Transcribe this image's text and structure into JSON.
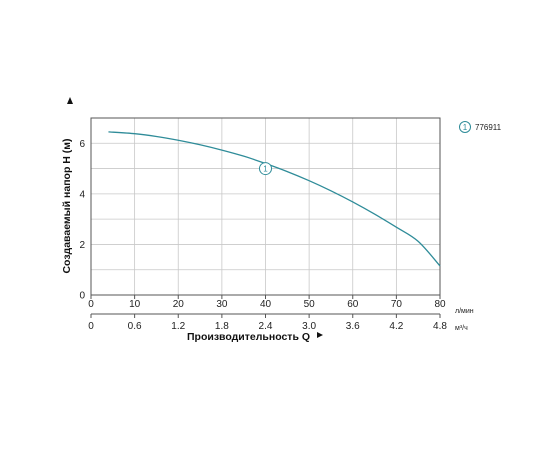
{
  "chart_data": {
    "type": "line",
    "ylabel": "Создаваемый напор H (м)",
    "xlabel": "Производительность Q",
    "x_unit": "л/мин",
    "x2_unit": "м³/ч",
    "xlim": [
      0,
      80
    ],
    "ylim": [
      0,
      7
    ],
    "x_ticks": [
      "0",
      "10",
      "20",
      "30",
      "40",
      "50",
      "60",
      "70",
      "80"
    ],
    "x2_ticks": [
      "0",
      "0.6",
      "1.2",
      "1.8",
      "2.4",
      "3.0",
      "3.6",
      "4.2",
      "4.8"
    ],
    "y_ticks": [
      "0",
      "2",
      "4",
      "6"
    ],
    "grid": true,
    "legend_position": "top-right",
    "series": [
      {
        "name": "776911",
        "marker_label": "1",
        "color": "#2f8c99",
        "x": [
          4,
          10,
          15,
          20,
          25,
          30,
          35,
          40,
          45,
          50,
          55,
          60,
          65,
          70,
          75,
          80
        ],
        "y": [
          6.45,
          6.38,
          6.27,
          6.12,
          5.94,
          5.73,
          5.49,
          5.2,
          4.88,
          4.52,
          4.12,
          3.68,
          3.2,
          2.68,
          2.12,
          1.15
        ]
      }
    ],
    "marker_point": {
      "x": 40,
      "y": 5.0
    }
  }
}
